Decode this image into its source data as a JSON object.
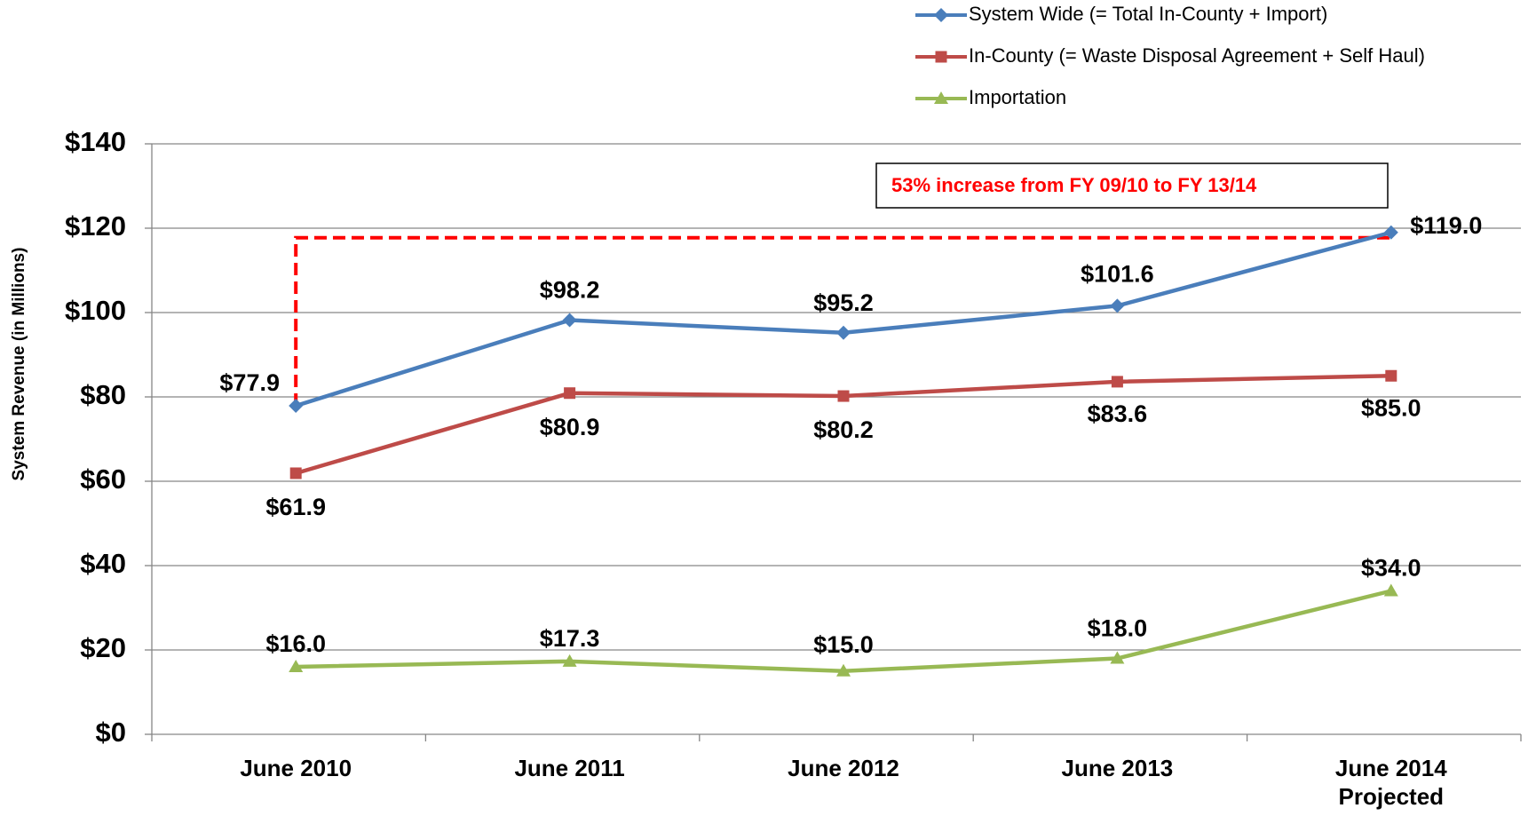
{
  "chart_data": {
    "type": "line",
    "y_axis_label": "System Revenue (in Millions)",
    "annotation": "53% increase from FY 09/10 to FY 13/14",
    "categories": [
      "June 2010",
      "June 2011",
      "June 2012",
      "June 2013",
      "June 2014 Projected"
    ],
    "series": [
      {
        "name": "System Wide (= Total In-County + Import)",
        "color": "#4a7ebb",
        "marker": "diamond",
        "values": [
          77.9,
          98.2,
          95.2,
          101.6,
          119.0
        ],
        "value_labels": [
          "$77.9",
          "$98.2",
          "$95.2",
          "$101.6",
          "$119.0"
        ]
      },
      {
        "name": "In-County (= Waste Disposal Agreement + Self Haul)",
        "color": "#be4b48",
        "marker": "square",
        "values": [
          61.9,
          80.9,
          80.2,
          83.6,
          85.0
        ],
        "value_labels": [
          "$61.9",
          "$80.9",
          "$80.2",
          "$83.6",
          "$85.0"
        ]
      },
      {
        "name": "Importation",
        "color": "#98b954",
        "marker": "triangle",
        "values": [
          16.0,
          17.3,
          15.0,
          18.0,
          34.0
        ],
        "value_labels": [
          "$16.0",
          "$17.3",
          "$15.0",
          "$18.0",
          "$34.0"
        ]
      }
    ],
    "ylim": [
      0,
      140
    ],
    "yticks": [
      {
        "value": 0,
        "label": "$0"
      },
      {
        "value": 20,
        "label": "$20"
      },
      {
        "value": 40,
        "label": "$40"
      },
      {
        "value": 60,
        "label": "$60"
      },
      {
        "value": 80,
        "label": "$80"
      },
      {
        "value": 100,
        "label": "$100"
      },
      {
        "value": 120,
        "label": "$120"
      },
      {
        "value": 140,
        "label": "$140"
      }
    ],
    "grid": true,
    "legend": "top-right"
  }
}
